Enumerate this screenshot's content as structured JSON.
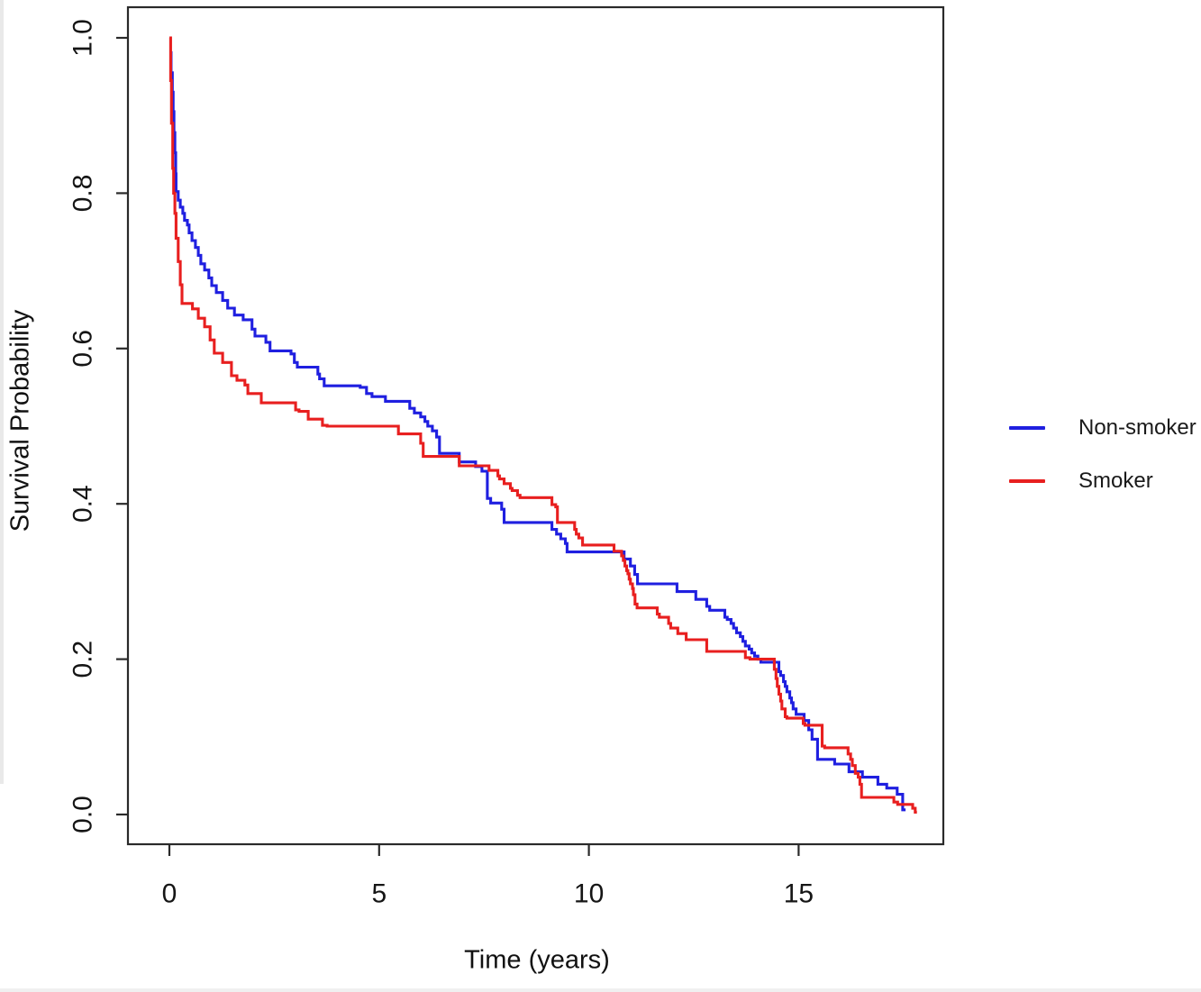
{
  "chart_data": {
    "type": "line",
    "subtype": "kaplan-meier-step-curves",
    "title": "",
    "xlabel": "Time (years)",
    "ylabel": "Survival Probability",
    "xlim": [
      -0.95,
      18.45
    ],
    "ylim": [
      -0.038,
      1.039
    ],
    "grid": "off",
    "frame": "box",
    "xticks": [
      0,
      5,
      10,
      15
    ],
    "xtick_labels": [
      "0",
      "5",
      "10",
      "15"
    ],
    "yticks": [
      0.0,
      0.2,
      0.4,
      0.6,
      0.8,
      1.0
    ],
    "ytick_labels": [
      "0.0",
      "0.2",
      "0.4",
      "0.6",
      "0.8",
      "1.0"
    ],
    "legend_position": "right",
    "frame_color": "#2a2a2a",
    "text_color": "#151515",
    "series": [
      {
        "name": "Non-smoker",
        "color": "#1f1fe0",
        "end_time": 17.55,
        "step_points": [
          [
            0,
            0.981
          ],
          [
            0.04,
            0.955
          ],
          [
            0.07,
            0.93
          ],
          [
            0.09,
            0.905
          ],
          [
            0.11,
            0.878
          ],
          [
            0.13,
            0.852
          ],
          [
            0.15,
            0.825
          ],
          [
            0.16,
            0.802
          ],
          [
            0.21,
            0.791
          ],
          [
            0.26,
            0.782
          ],
          [
            0.32,
            0.774
          ],
          [
            0.36,
            0.765
          ],
          [
            0.43,
            0.759
          ],
          [
            0.47,
            0.749
          ],
          [
            0.54,
            0.739
          ],
          [
            0.62,
            0.73
          ],
          [
            0.69,
            0.72
          ],
          [
            0.75,
            0.709
          ],
          [
            0.84,
            0.701
          ],
          [
            0.94,
            0.691
          ],
          [
            1.01,
            0.681
          ],
          [
            1.12,
            0.672
          ],
          [
            1.27,
            0.662
          ],
          [
            1.39,
            0.652
          ],
          [
            1.55,
            0.643
          ],
          [
            1.76,
            0.637
          ],
          [
            1.97,
            0.625
          ],
          [
            2.04,
            0.616
          ],
          [
            2.3,
            0.608
          ],
          [
            2.4,
            0.597
          ],
          [
            2.9,
            0.593
          ],
          [
            2.98,
            0.582
          ],
          [
            3.05,
            0.576
          ],
          [
            3.54,
            0.567
          ],
          [
            3.58,
            0.561
          ],
          [
            3.69,
            0.552
          ],
          [
            4.55,
            0.55
          ],
          [
            4.7,
            0.542
          ],
          [
            4.83,
            0.538
          ],
          [
            5.15,
            0.532
          ],
          [
            5.73,
            0.523
          ],
          [
            5.84,
            0.517
          ],
          [
            5.99,
            0.512
          ],
          [
            6.09,
            0.506
          ],
          [
            6.16,
            0.5
          ],
          [
            6.27,
            0.494
          ],
          [
            6.37,
            0.486
          ],
          [
            6.44,
            0.465
          ],
          [
            6.91,
            0.454
          ],
          [
            7.3,
            0.448
          ],
          [
            7.45,
            0.442
          ],
          [
            7.58,
            0.407
          ],
          [
            7.66,
            0.401
          ],
          [
            7.92,
            0.393
          ],
          [
            7.98,
            0.376
          ],
          [
            9.12,
            0.367
          ],
          [
            9.23,
            0.361
          ],
          [
            9.33,
            0.355
          ],
          [
            9.44,
            0.349
          ],
          [
            9.48,
            0.338
          ],
          [
            10.84,
            0.329
          ],
          [
            10.99,
            0.32
          ],
          [
            11.09,
            0.309
          ],
          [
            11.16,
            0.297
          ],
          [
            12.1,
            0.287
          ],
          [
            12.55,
            0.277
          ],
          [
            12.81,
            0.268
          ],
          [
            12.88,
            0.263
          ],
          [
            13.24,
            0.254
          ],
          [
            13.3,
            0.251
          ],
          [
            13.39,
            0.246
          ],
          [
            13.45,
            0.24
          ],
          [
            13.52,
            0.234
          ],
          [
            13.61,
            0.229
          ],
          [
            13.67,
            0.223
          ],
          [
            13.73,
            0.217
          ],
          [
            13.82,
            0.213
          ],
          [
            13.88,
            0.208
          ],
          [
            13.95,
            0.204
          ],
          [
            14.03,
            0.2
          ],
          [
            14.1,
            0.196
          ],
          [
            14.53,
            0.184
          ],
          [
            14.57,
            0.179
          ],
          [
            14.64,
            0.171
          ],
          [
            14.68,
            0.165
          ],
          [
            14.72,
            0.158
          ],
          [
            14.79,
            0.15
          ],
          [
            14.83,
            0.144
          ],
          [
            14.87,
            0.136
          ],
          [
            14.94,
            0.129
          ],
          [
            15.13,
            0.121
          ],
          [
            15.24,
            0.109
          ],
          [
            15.32,
            0.097
          ],
          [
            15.45,
            0.071
          ],
          [
            15.86,
            0.065
          ],
          [
            16.2,
            0.055
          ],
          [
            16.52,
            0.048
          ],
          [
            16.89,
            0.039
          ],
          [
            17.1,
            0.034
          ],
          [
            17.35,
            0.026
          ],
          [
            17.48,
            0.006
          ]
        ]
      },
      {
        "name": "Smoker",
        "color": "#e81f1f",
        "end_time": 17.82,
        "step_points": [
          [
            0,
            1.0
          ],
          [
            0.03,
            0.945
          ],
          [
            0.05,
            0.89
          ],
          [
            0.08,
            0.832
          ],
          [
            0.1,
            0.8
          ],
          [
            0.13,
            0.774
          ],
          [
            0.16,
            0.742
          ],
          [
            0.21,
            0.712
          ],
          [
            0.26,
            0.682
          ],
          [
            0.3,
            0.658
          ],
          [
            0.55,
            0.651
          ],
          [
            0.69,
            0.639
          ],
          [
            0.84,
            0.628
          ],
          [
            0.97,
            0.611
          ],
          [
            1.07,
            0.594
          ],
          [
            1.27,
            0.582
          ],
          [
            1.48,
            0.565
          ],
          [
            1.61,
            0.559
          ],
          [
            1.8,
            0.553
          ],
          [
            1.87,
            0.542
          ],
          [
            2.19,
            0.53
          ],
          [
            3.01,
            0.521
          ],
          [
            3.09,
            0.519
          ],
          [
            3.31,
            0.509
          ],
          [
            3.65,
            0.501
          ],
          [
            3.76,
            0.5
          ],
          [
            5.46,
            0.49
          ],
          [
            5.99,
            0.478
          ],
          [
            6.05,
            0.461
          ],
          [
            6.91,
            0.449
          ],
          [
            7.62,
            0.443
          ],
          [
            7.83,
            0.436
          ],
          [
            7.87,
            0.432
          ],
          [
            7.98,
            0.426
          ],
          [
            8.13,
            0.42
          ],
          [
            8.17,
            0.417
          ],
          [
            8.3,
            0.411
          ],
          [
            8.36,
            0.408
          ],
          [
            9.12,
            0.399
          ],
          [
            9.21,
            0.396
          ],
          [
            9.25,
            0.376
          ],
          [
            9.66,
            0.367
          ],
          [
            9.7,
            0.361
          ],
          [
            9.76,
            0.356
          ],
          [
            9.85,
            0.347
          ],
          [
            10.6,
            0.339
          ],
          [
            10.78,
            0.333
          ],
          [
            10.82,
            0.327
          ],
          [
            10.86,
            0.32
          ],
          [
            10.9,
            0.314
          ],
          [
            10.93,
            0.31
          ],
          [
            10.96,
            0.303
          ],
          [
            10.99,
            0.297
          ],
          [
            11.04,
            0.291
          ],
          [
            11.06,
            0.283
          ],
          [
            11.1,
            0.271
          ],
          [
            11.15,
            0.266
          ],
          [
            11.63,
            0.258
          ],
          [
            11.68,
            0.254
          ],
          [
            11.9,
            0.246
          ],
          [
            11.95,
            0.24
          ],
          [
            12.12,
            0.233
          ],
          [
            12.32,
            0.225
          ],
          [
            12.81,
            0.21
          ],
          [
            13.73,
            0.202
          ],
          [
            13.84,
            0.2
          ],
          [
            14.42,
            0.187
          ],
          [
            14.46,
            0.175
          ],
          [
            14.49,
            0.165
          ],
          [
            14.53,
            0.155
          ],
          [
            14.57,
            0.146
          ],
          [
            14.6,
            0.136
          ],
          [
            14.68,
            0.126
          ],
          [
            14.72,
            0.124
          ],
          [
            15.11,
            0.117
          ],
          [
            15.15,
            0.115
          ],
          [
            15.56,
            0.088
          ],
          [
            15.62,
            0.086
          ],
          [
            16.18,
            0.078
          ],
          [
            16.24,
            0.071
          ],
          [
            16.28,
            0.063
          ],
          [
            16.35,
            0.053
          ],
          [
            16.42,
            0.048
          ],
          [
            16.46,
            0.039
          ],
          [
            16.5,
            0.022
          ],
          [
            17.27,
            0.016
          ],
          [
            17.36,
            0.013
          ],
          [
            17.72,
            0.008
          ],
          [
            17.78,
            0.003
          ]
        ]
      }
    ]
  },
  "legend": {
    "entries": [
      {
        "label": "Non-smoker",
        "color": "#1f1fe0"
      },
      {
        "label": "Smoker",
        "color": "#e81f1f"
      }
    ]
  }
}
